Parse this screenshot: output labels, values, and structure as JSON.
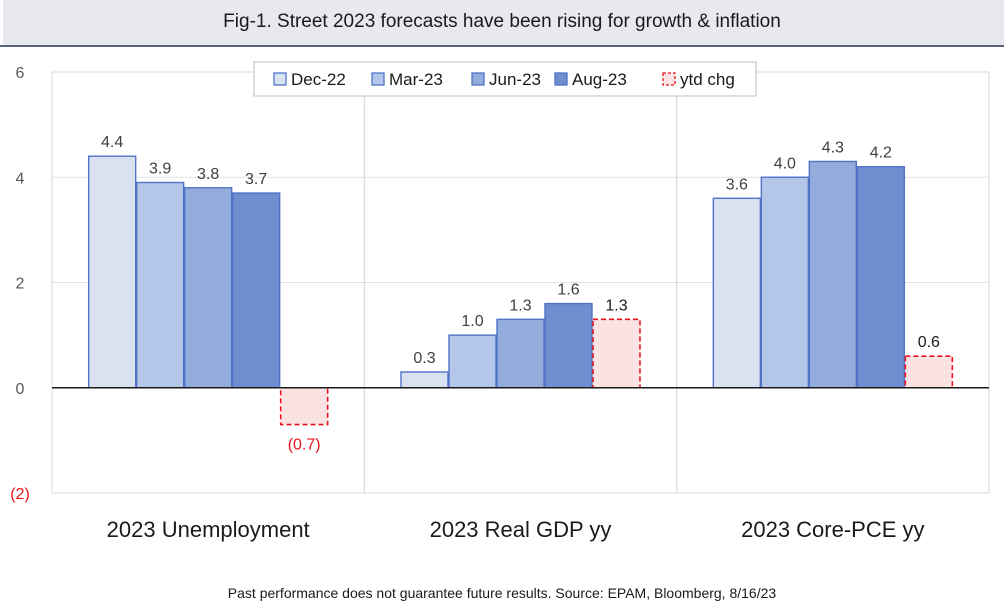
{
  "header": {
    "title": "Fig-1. Street 2023 forecasts have been rising for growth & inflation"
  },
  "footer": {
    "note": "Past performance does not guarantee future results.  Source: EPAM, Bloomberg, 8/16/23"
  },
  "chart_data": {
    "type": "bar",
    "title": "Fig-1. Street 2023 forecasts have been rising for growth & inflation",
    "xlabel": "",
    "ylabel": "",
    "ylim": [
      -2,
      6
    ],
    "yticks": [
      {
        "value": 6,
        "label": "6",
        "color": "#595959"
      },
      {
        "value": 4,
        "label": "4",
        "color": "#595959"
      },
      {
        "value": 2,
        "label": "2",
        "color": "#595959"
      },
      {
        "value": 0,
        "label": "0",
        "color": "#595959"
      },
      {
        "value": -2,
        "label": "(2)",
        "color": "#e8141b"
      }
    ],
    "grid": true,
    "legend_position": "top-center",
    "categories": [
      "2023 Unemployment",
      "2023 Real GDP yy",
      "2023 Core-PCE yy"
    ],
    "series": [
      {
        "name": "Dec-22",
        "values": [
          4.4,
          0.3,
          3.6
        ],
        "labels": [
          "4.4",
          "0.3",
          "3.6"
        ],
        "fill": "#dae1f0",
        "stroke": "#4f73c9",
        "dashed": false
      },
      {
        "name": "Mar-23",
        "values": [
          3.9,
          1.0,
          4.0
        ],
        "labels": [
          "3.9",
          "1.0",
          "4.0"
        ],
        "fill": "#b5c7e8",
        "stroke": "#4f73c9",
        "dashed": false
      },
      {
        "name": "Jun-23",
        "values": [
          3.8,
          1.3,
          4.3
        ],
        "labels": [
          "3.8",
          "1.3",
          "4.3"
        ],
        "fill": "#93acdc",
        "stroke": "#4f73c9",
        "dashed": false
      },
      {
        "name": "Aug-23",
        "values": [
          3.7,
          1.6,
          4.2
        ],
        "labels": [
          "3.7",
          "1.6",
          "4.2"
        ],
        "fill": "#6f8ecf",
        "stroke": "#4f73c9",
        "dashed": false
      },
      {
        "name": "ytd chg",
        "values": [
          -0.7,
          1.3,
          0.6
        ],
        "labels": [
          "(0.7)",
          "1.3",
          "0.6"
        ],
        "fill": "#fbe3e4",
        "stroke": "#e8141b",
        "dashed": true
      }
    ],
    "label_colors": {
      "default": "#404040",
      "ytd_positive": "#1a1a1a",
      "ytd_negative": "#e8141b"
    }
  }
}
